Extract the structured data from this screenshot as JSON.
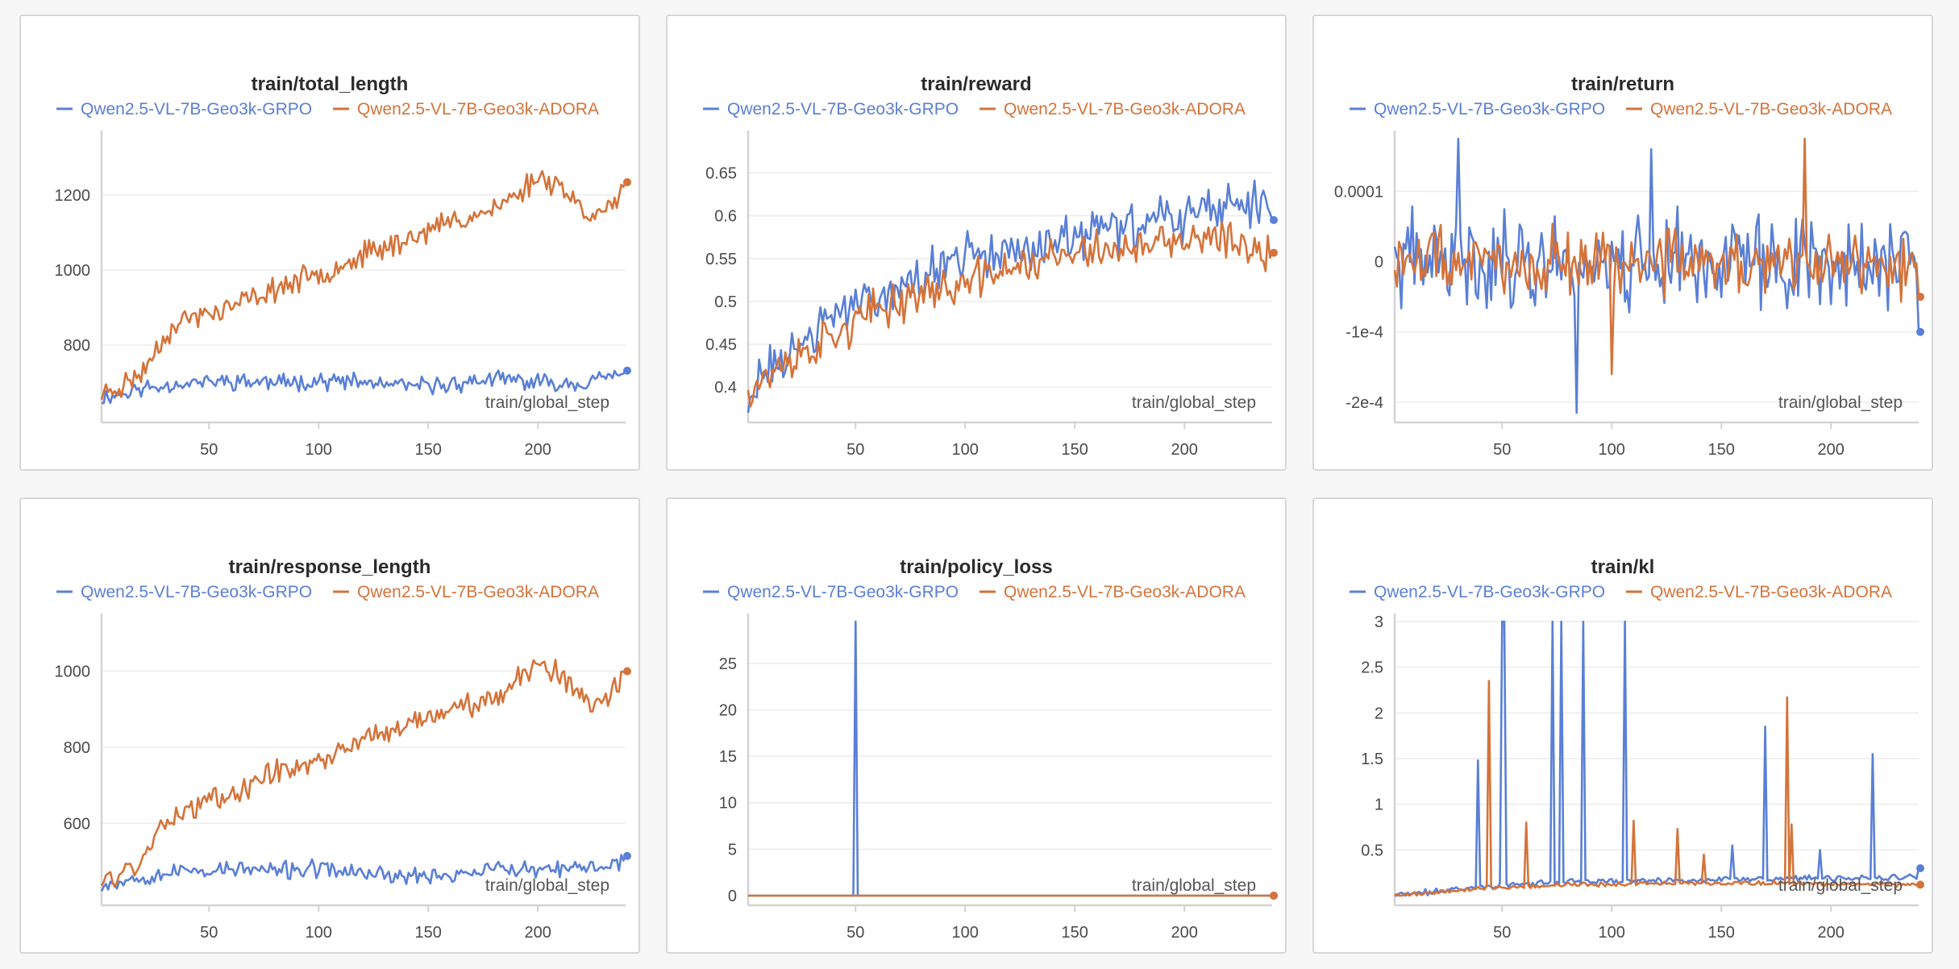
{
  "colors": {
    "grpo": "#5a7fd6",
    "adora": "#d4733a"
  },
  "legend": [
    "Qwen2.5-VL-7B-Geo3k-GRPO",
    "Qwen2.5-VL-7B-Geo3k-ADORA"
  ],
  "xlabel": "train/global_step",
  "chart_data": [
    {
      "type": "line",
      "title": "train/total_length",
      "xlabel": "train/global_step",
      "xlim": [
        1,
        240
      ],
      "ylim": [
        620,
        1350
      ],
      "xticks": [
        50,
        100,
        150,
        200
      ],
      "yticks": [
        {
          "v": 800,
          "label": "800"
        },
        {
          "v": 1000,
          "label": "1000"
        },
        {
          "v": 1200,
          "label": "1200"
        }
      ],
      "series": [
        {
          "name": "Qwen2.5-VL-7B-Geo3k-GRPO",
          "key": "grpo",
          "points": [
            [
              1,
              660
            ],
            [
              20,
              685
            ],
            [
              40,
              700
            ],
            [
              60,
              705
            ],
            [
              80,
              700
            ],
            [
              100,
              705
            ],
            [
              120,
              700
            ],
            [
              140,
              690
            ],
            [
              160,
              695
            ],
            [
              180,
              710
            ],
            [
              200,
              700
            ],
            [
              220,
              700
            ],
            [
              240,
              725
            ]
          ],
          "noise": 28,
          "seed": 11
        },
        {
          "name": "Qwen2.5-VL-7B-Geo3k-ADORA",
          "key": "adora",
          "points": [
            [
              1,
              670
            ],
            [
              10,
              690
            ],
            [
              20,
              730
            ],
            [
              30,
              830
            ],
            [
              40,
              870
            ],
            [
              60,
              900
            ],
            [
              80,
              950
            ],
            [
              100,
              990
            ],
            [
              120,
              1040
            ],
            [
              140,
              1080
            ],
            [
              160,
              1130
            ],
            [
              180,
              1160
            ],
            [
              190,
              1200
            ],
            [
              200,
              1250
            ],
            [
              210,
              1230
            ],
            [
              220,
              1160
            ],
            [
              230,
              1150
            ],
            [
              240,
              1215
            ]
          ],
          "noise": 40,
          "seed": 23
        }
      ]
    },
    {
      "type": "line",
      "title": "train/reward",
      "xlabel": "train/global_step",
      "xlim": [
        1,
        240
      ],
      "ylim": [
        0.37,
        0.69
      ],
      "xticks": [
        50,
        100,
        150,
        200
      ],
      "yticks": [
        {
          "v": 0.4,
          "label": "0.4"
        },
        {
          "v": 0.45,
          "label": "0.45"
        },
        {
          "v": 0.5,
          "label": "0.5"
        },
        {
          "v": 0.55,
          "label": "0.55"
        },
        {
          "v": 0.6,
          "label": "0.6"
        },
        {
          "v": 0.65,
          "label": "0.65"
        }
      ],
      "series": [
        {
          "name": "Qwen2.5-VL-7B-Geo3k-GRPO",
          "key": "grpo",
          "points": [
            [
              1,
              0.39
            ],
            [
              20,
              0.44
            ],
            [
              40,
              0.48
            ],
            [
              60,
              0.51
            ],
            [
              80,
              0.53
            ],
            [
              100,
              0.55
            ],
            [
              120,
              0.56
            ],
            [
              140,
              0.57
            ],
            [
              160,
              0.58
            ],
            [
              180,
              0.59
            ],
            [
              200,
              0.6
            ],
            [
              220,
              0.61
            ],
            [
              240,
              0.62
            ]
          ],
          "noise": 0.035,
          "seed": 31
        },
        {
          "name": "Qwen2.5-VL-7B-Geo3k-ADORA",
          "key": "adora",
          "points": [
            [
              1,
              0.4
            ],
            [
              20,
              0.43
            ],
            [
              40,
              0.46
            ],
            [
              60,
              0.49
            ],
            [
              80,
              0.51
            ],
            [
              100,
              0.52
            ],
            [
              120,
              0.54
            ],
            [
              140,
              0.55
            ],
            [
              160,
              0.56
            ],
            [
              180,
              0.56
            ],
            [
              200,
              0.57
            ],
            [
              220,
              0.57
            ],
            [
              240,
              0.56
            ]
          ],
          "noise": 0.03,
          "seed": 37
        }
      ]
    },
    {
      "type": "line",
      "title": "train/return",
      "xlabel": "train/global_step",
      "xlim": [
        1,
        240
      ],
      "ylim": [
        -0.000215,
        0.000175
      ],
      "xticks": [
        50,
        100,
        150,
        200
      ],
      "yticks": [
        {
          "v": -0.0002,
          "label": "-2e-4"
        },
        {
          "v": -0.0001,
          "label": "-1e-4"
        },
        {
          "v": 0,
          "label": "0"
        },
        {
          "v": 0.0001,
          "label": "0.0001"
        }
      ],
      "series": [
        {
          "name": "Qwen2.5-VL-7B-Geo3k-GRPO",
          "key": "grpo",
          "points": [
            [
              1,
              0
            ],
            [
              240,
              0
            ]
          ],
          "noise": 8.5e-05,
          "seed": 41,
          "end": -0.0001,
          "spikes": [
            [
              84,
              -0.000215
            ],
            [
              30,
              0.000175
            ],
            [
              118,
              0.00016
            ]
          ]
        },
        {
          "name": "Qwen2.5-VL-7B-Geo3k-ADORA",
          "key": "adora",
          "points": [
            [
              1,
              0
            ],
            [
              240,
              0
            ]
          ],
          "noise": 6e-05,
          "seed": 47,
          "end": -5e-05,
          "spikes": [
            [
              188,
              0.000175
            ],
            [
              100,
              -0.00016
            ]
          ]
        }
      ]
    },
    {
      "type": "line",
      "title": "train/response_length",
      "xlabel": "train/global_step",
      "xlim": [
        1,
        240
      ],
      "ylim": [
        410,
        1130
      ],
      "xticks": [
        50,
        100,
        150,
        200
      ],
      "yticks": [
        {
          "v": 600,
          "label": "600"
        },
        {
          "v": 800,
          "label": "800"
        },
        {
          "v": 1000,
          "label": "1000"
        }
      ],
      "series": [
        {
          "name": "Qwen2.5-VL-7B-Geo3k-GRPO",
          "key": "grpo",
          "points": [
            [
              1,
              440
            ],
            [
              20,
              460
            ],
            [
              40,
              475
            ],
            [
              60,
              480
            ],
            [
              80,
              475
            ],
            [
              100,
              480
            ],
            [
              120,
              470
            ],
            [
              140,
              460
            ],
            [
              160,
              465
            ],
            [
              180,
              480
            ],
            [
              200,
              475
            ],
            [
              220,
              480
            ],
            [
              240,
              500
            ]
          ],
          "noise": 28,
          "seed": 53
        },
        {
          "name": "Qwen2.5-VL-7B-Geo3k-ADORA",
          "key": "adora",
          "points": [
            [
              1,
              440
            ],
            [
              10,
              470
            ],
            [
              20,
              510
            ],
            [
              30,
              600
            ],
            [
              40,
              640
            ],
            [
              60,
              680
            ],
            [
              80,
              730
            ],
            [
              100,
              770
            ],
            [
              120,
              820
            ],
            [
              140,
              860
            ],
            [
              160,
              900
            ],
            [
              180,
              930
            ],
            [
              190,
              980
            ],
            [
              200,
              1020
            ],
            [
              210,
              990
            ],
            [
              220,
              930
            ],
            [
              230,
              920
            ],
            [
              240,
              995
            ]
          ],
          "noise": 38,
          "seed": 59
        }
      ]
    },
    {
      "type": "line",
      "title": "train/policy_loss",
      "xlabel": "train/global_step",
      "xlim": [
        1,
        240
      ],
      "ylim": [
        0,
        29.5
      ],
      "xticks": [
        50,
        100,
        150,
        200
      ],
      "yticks": [
        {
          "v": 0,
          "label": "0"
        },
        {
          "v": 5,
          "label": "5"
        },
        {
          "v": 10,
          "label": "10"
        },
        {
          "v": 15,
          "label": "15"
        },
        {
          "v": 20,
          "label": "20"
        },
        {
          "v": 25,
          "label": "25"
        }
      ],
      "series": [
        {
          "name": "Qwen2.5-VL-7B-Geo3k-GRPO",
          "key": "grpo",
          "points": [
            [
              1,
              0
            ],
            [
              240,
              0
            ]
          ],
          "noise": 0,
          "seed": 61,
          "spikes": [
            [
              50,
              29.5
            ]
          ]
        },
        {
          "name": "Qwen2.5-VL-7B-Geo3k-ADORA",
          "key": "adora",
          "points": [
            [
              1,
              0
            ],
            [
              240,
              0
            ]
          ],
          "noise": 0,
          "seed": 67
        }
      ]
    },
    {
      "type": "line",
      "title": "train/kl",
      "xlabel": "train/global_step",
      "xlim": [
        1,
        240
      ],
      "ylim": [
        0,
        3
      ],
      "xticks": [
        50,
        100,
        150,
        200
      ],
      "yticks": [
        {
          "v": 0.5,
          "label": "0.5"
        },
        {
          "v": 1,
          "label": "1"
        },
        {
          "v": 1.5,
          "label": "1.5"
        },
        {
          "v": 2,
          "label": "2"
        },
        {
          "v": 2.5,
          "label": "2.5"
        },
        {
          "v": 3,
          "label": "3"
        }
      ],
      "series": [
        {
          "name": "Qwen2.5-VL-7B-Geo3k-GRPO",
          "key": "grpo",
          "points": [
            [
              1,
              0
            ],
            [
              40,
              0.1
            ],
            [
              80,
              0.15
            ],
            [
              160,
              0.18
            ],
            [
              240,
              0.2
            ]
          ],
          "noise": 0.04,
          "seed": 71,
          "end": 0.3,
          "spikes": [
            [
              39,
              1.48
            ],
            [
              50,
              3
            ],
            [
              51,
              3
            ],
            [
              73,
              3
            ],
            [
              77,
              3
            ],
            [
              87,
              3
            ],
            [
              106,
              3
            ],
            [
              170,
              1.85
            ],
            [
              219,
              1.55
            ],
            [
              155,
              0.55
            ],
            [
              195,
              0.5
            ]
          ]
        },
        {
          "name": "Qwen2.5-VL-7B-Geo3k-ADORA",
          "key": "adora",
          "points": [
            [
              1,
              0
            ],
            [
              40,
              0.08
            ],
            [
              80,
              0.12
            ],
            [
              160,
              0.14
            ],
            [
              240,
              0.12
            ]
          ],
          "noise": 0.03,
          "seed": 79,
          "end": 0.12,
          "spikes": [
            [
              44,
              2.35
            ],
            [
              61,
              0.8
            ],
            [
              110,
              0.82
            ],
            [
              130,
              0.73
            ],
            [
              180,
              2.17
            ],
            [
              182,
              0.78
            ],
            [
              142,
              0.45
            ]
          ]
        }
      ]
    }
  ]
}
